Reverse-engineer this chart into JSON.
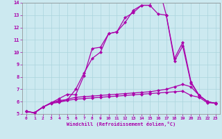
{
  "background_color": "#cce9f0",
  "line_color": "#aa00aa",
  "grid_color": "#aad4dd",
  "xlim": [
    -0.5,
    23.5
  ],
  "ylim": [
    5,
    14
  ],
  "xticks": [
    0,
    1,
    2,
    3,
    4,
    5,
    6,
    7,
    8,
    9,
    10,
    11,
    12,
    13,
    14,
    15,
    16,
    17,
    18,
    19,
    20,
    21,
    22,
    23
  ],
  "yticks": [
    5,
    6,
    7,
    8,
    9,
    10,
    11,
    12,
    13,
    14
  ],
  "xlabel": "Windchill (Refroidissement éolien,°C)",
  "series": [
    {
      "x": [
        0,
        1,
        2,
        3,
        4,
        5,
        6,
        7,
        8,
        9,
        10,
        11,
        12,
        13,
        14,
        15,
        16,
        17,
        18,
        19,
        20,
        21,
        22,
        23
      ],
      "y": [
        5.2,
        5.1,
        5.55,
        5.85,
        5.95,
        6.1,
        6.2,
        6.25,
        6.3,
        6.35,
        6.4,
        6.45,
        6.5,
        6.55,
        6.6,
        6.65,
        6.7,
        6.75,
        6.8,
        6.85,
        6.5,
        6.35,
        5.9,
        5.9
      ]
    },
    {
      "x": [
        0,
        1,
        2,
        3,
        4,
        5,
        6,
        7,
        8,
        9,
        10,
        11,
        12,
        13,
        14,
        15,
        16,
        17,
        18,
        19,
        20,
        21,
        22,
        23
      ],
      "y": [
        5.2,
        5.1,
        5.55,
        5.9,
        6.0,
        6.2,
        6.35,
        6.4,
        6.45,
        6.5,
        6.55,
        6.6,
        6.65,
        6.7,
        6.75,
        6.8,
        6.9,
        7.0,
        7.2,
        7.4,
        7.2,
        6.5,
        6.0,
        5.85
      ]
    },
    {
      "x": [
        0,
        1,
        2,
        3,
        4,
        5,
        6,
        7,
        8,
        9,
        10,
        11,
        12,
        13,
        14,
        15,
        16,
        17,
        18,
        19,
        20,
        21,
        22,
        23
      ],
      "y": [
        5.2,
        5.1,
        5.55,
        5.9,
        6.25,
        6.6,
        6.55,
        8.1,
        10.3,
        10.4,
        11.5,
        11.65,
        12.8,
        13.2,
        13.8,
        13.8,
        13.1,
        13.0,
        9.3,
        10.5,
        7.5,
        6.5,
        6.0,
        5.85
      ]
    },
    {
      "x": [
        0,
        1,
        2,
        3,
        4,
        5,
        6,
        7,
        8,
        9,
        10,
        11,
        12,
        13,
        14,
        15,
        16,
        17,
        18,
        19,
        20,
        21,
        22,
        23
      ],
      "y": [
        5.2,
        5.1,
        5.55,
        5.9,
        6.1,
        6.15,
        7.0,
        8.3,
        9.5,
        10.0,
        11.5,
        11.65,
        12.4,
        13.4,
        13.8,
        13.8,
        15.5,
        13.0,
        9.5,
        10.8,
        7.6,
        6.5,
        6.0,
        5.85
      ]
    }
  ]
}
